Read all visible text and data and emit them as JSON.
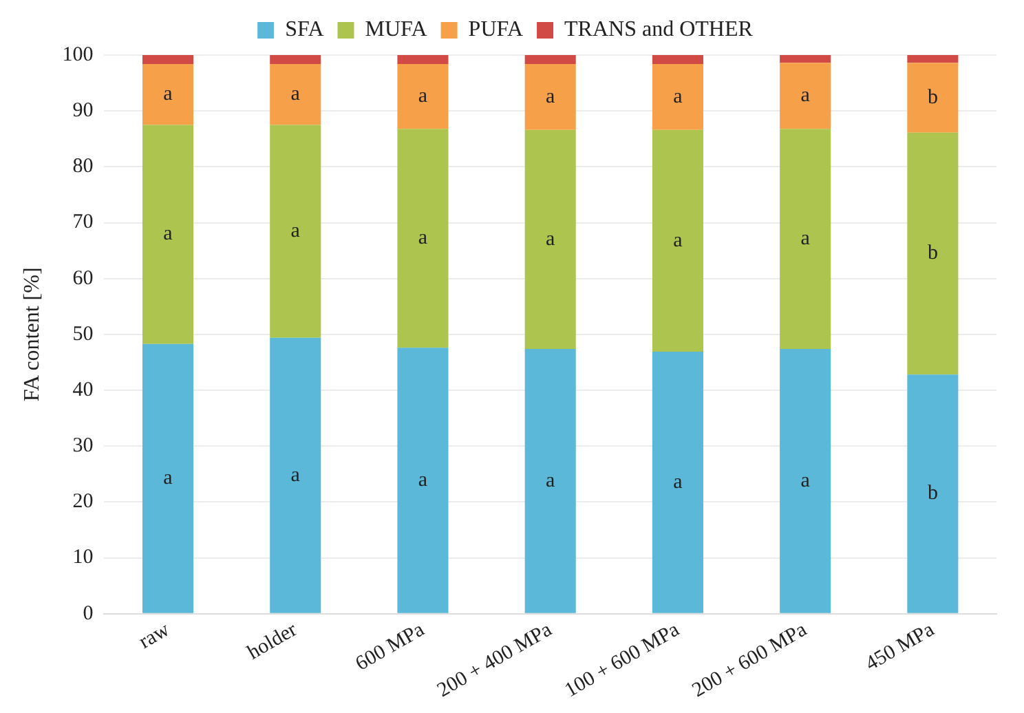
{
  "chart_data": {
    "type": "bar",
    "stacked": true,
    "ylabel": "FA content [%]",
    "categories": [
      "raw",
      "holder",
      "600 MPa",
      "200 + 400 MPa",
      "100 + 600 MPa",
      "200 + 600 MPa",
      "450 MPa"
    ],
    "series": [
      {
        "name": "SFA",
        "color": "#5bb8d9",
        "values": [
          48.3,
          49.4,
          47.6,
          47.4,
          46.9,
          47.4,
          42.8
        ],
        "value_labels": [
          "a",
          "a",
          "a",
          "a",
          "a",
          "a",
          "b"
        ]
      },
      {
        "name": "MUFA",
        "color": "#adc44e",
        "values": [
          39.2,
          38.1,
          39.2,
          39.2,
          39.7,
          39.4,
          43.3
        ],
        "value_labels": [
          "a",
          "a",
          "a",
          "a",
          "a",
          "a",
          "b"
        ]
      },
      {
        "name": "PUFA",
        "color": "#f6a04a",
        "values": [
          10.9,
          10.9,
          11.6,
          11.8,
          11.8,
          11.8,
          12.5
        ],
        "value_labels": [
          "a",
          "a",
          "a",
          "a",
          "a",
          "a",
          "b"
        ]
      },
      {
        "name": "TRANS and OTHER",
        "color": "#d24a45",
        "values": [
          1.6,
          1.6,
          1.6,
          1.6,
          1.6,
          1.4,
          1.4
        ]
      }
    ],
    "ylim": [
      0,
      100
    ],
    "yticks": [
      0,
      10,
      20,
      30,
      40,
      50,
      60,
      70,
      80,
      90,
      100
    ],
    "grid": "y",
    "legend": "top"
  }
}
